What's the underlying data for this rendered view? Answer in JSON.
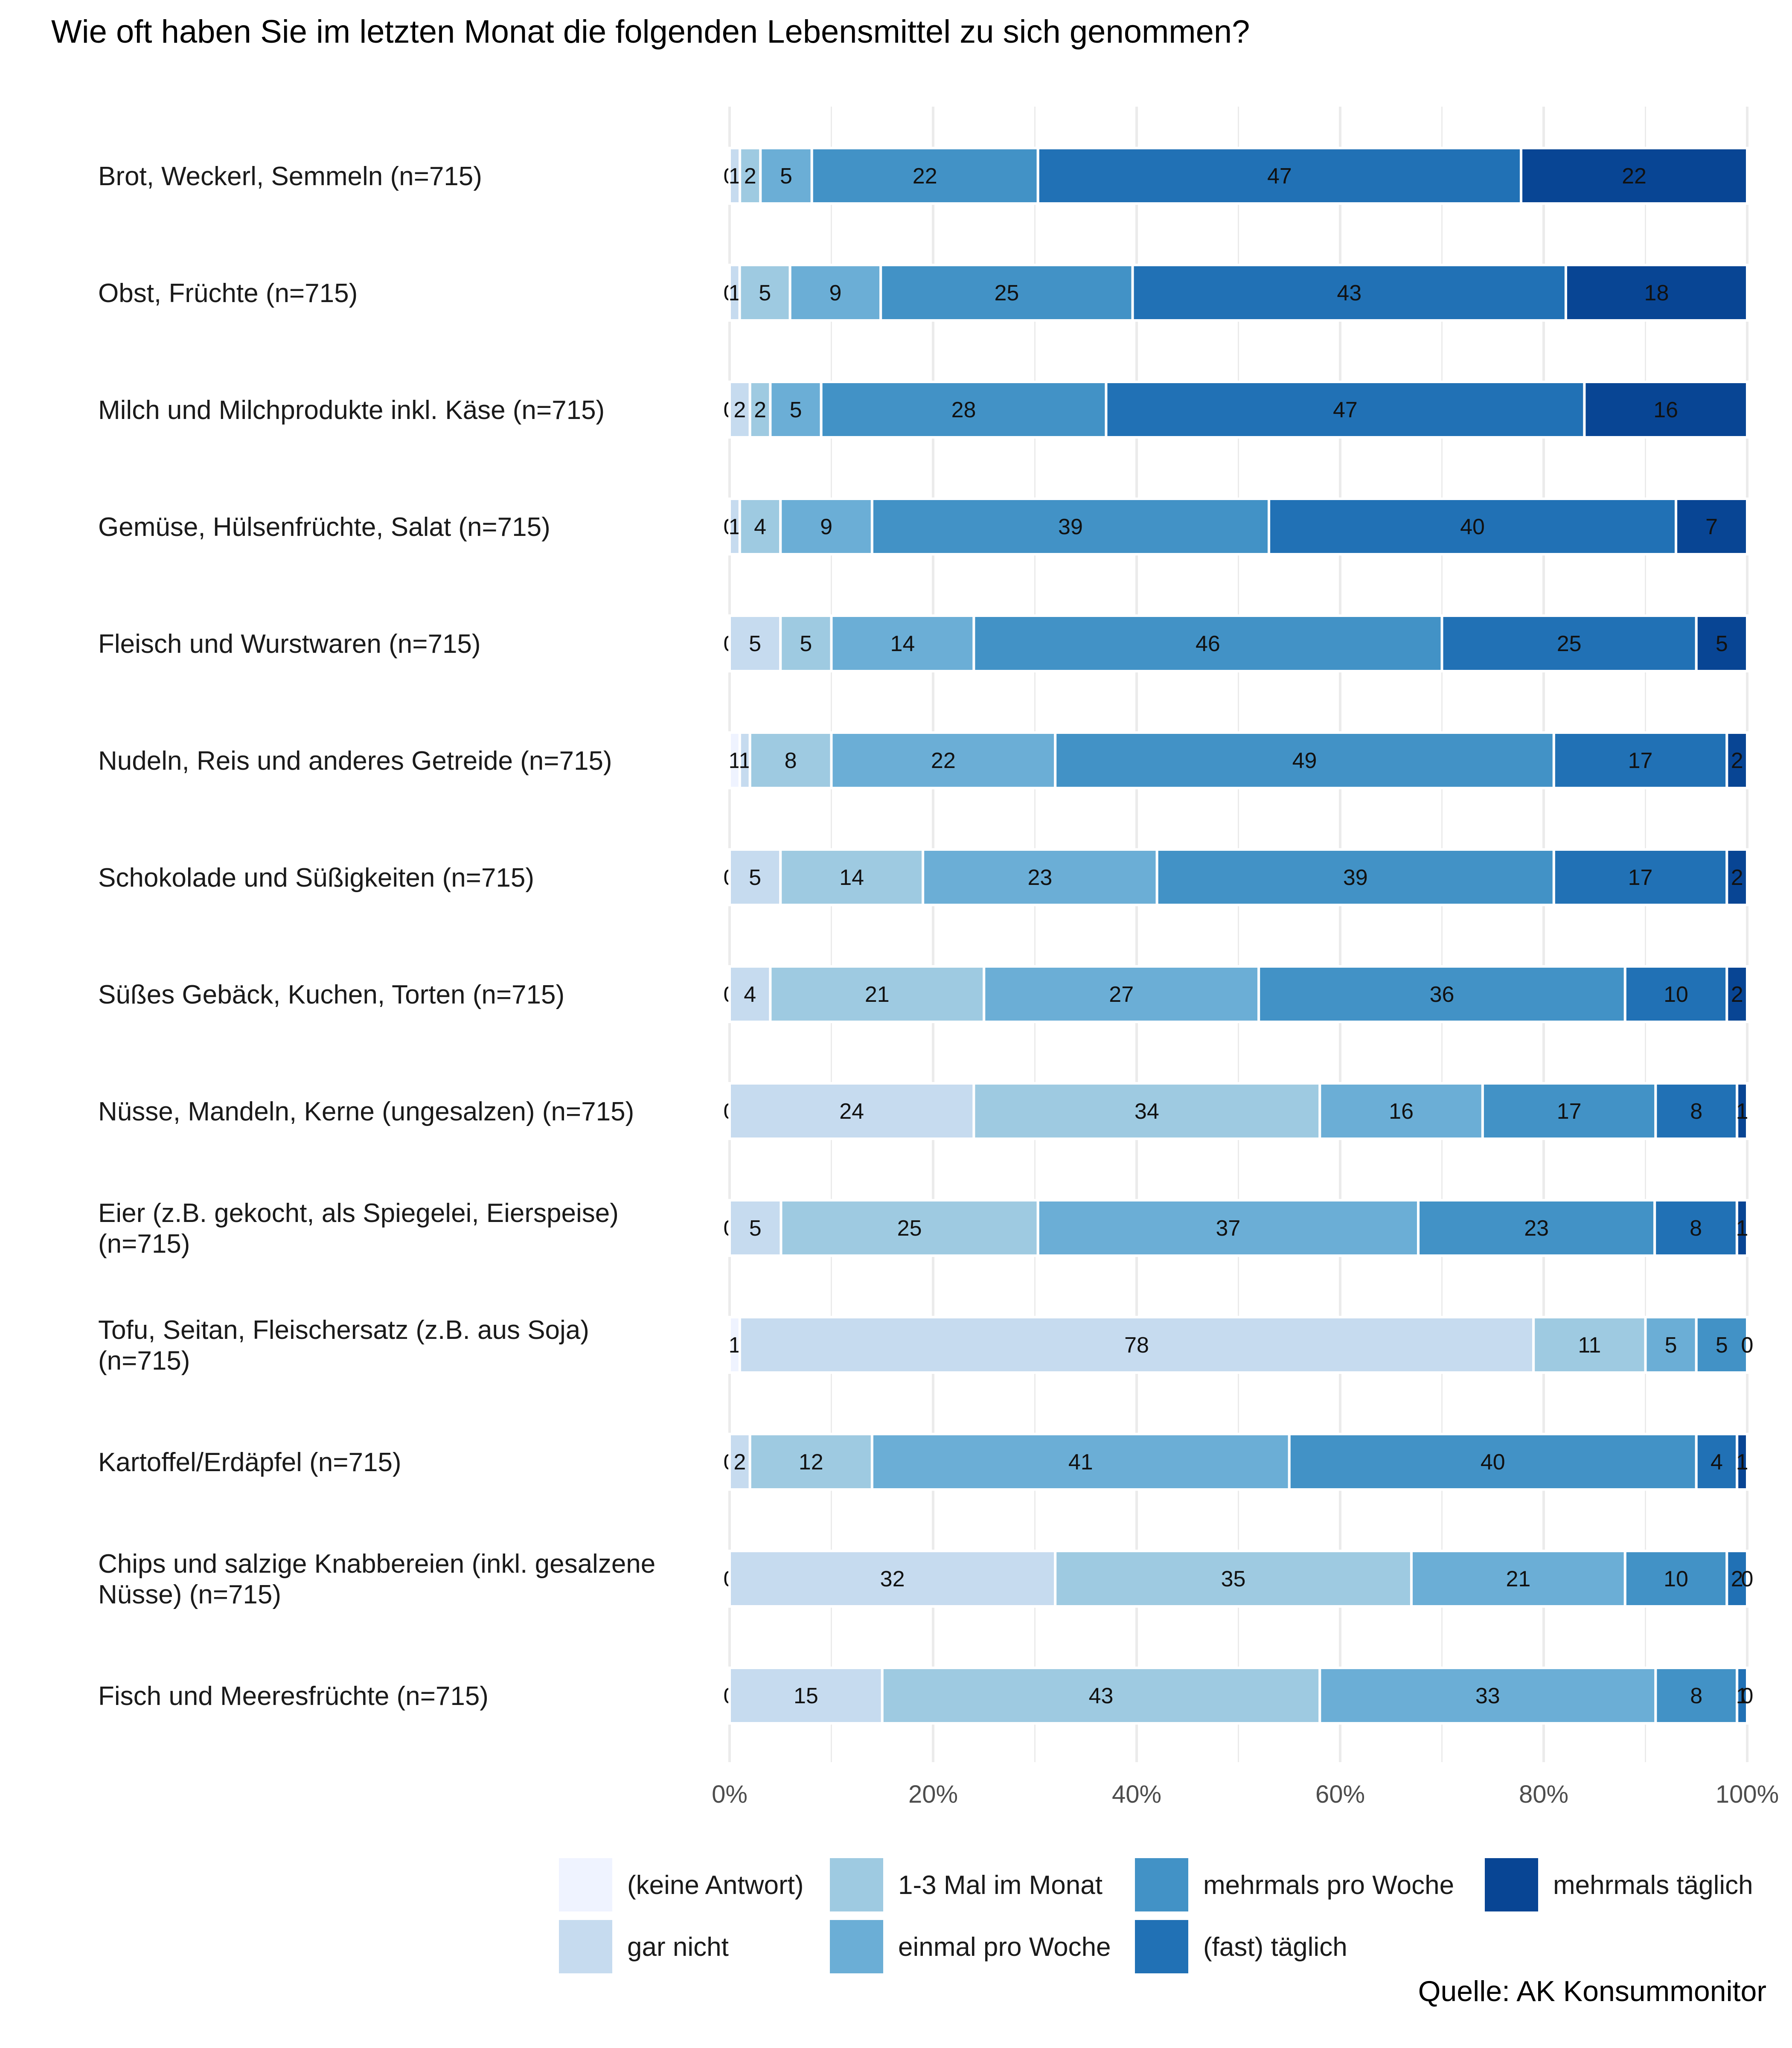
{
  "chart_data": {
    "type": "bar",
    "orientation": "horizontal",
    "stacked": true,
    "title": "Wie oft haben Sie im letzten Monat die folgenden Lebensmittel zu sich genommen?",
    "source": "Quelle: AK Konsummonitor",
    "xlim": [
      0,
      100
    ],
    "x_ticks": [
      "0%",
      "20%",
      "40%",
      "60%",
      "80%",
      "100%"
    ],
    "grid": true,
    "legend_position": "bottom",
    "series": [
      {
        "name": "(keine Antwort)",
        "color": "#eff3ff"
      },
      {
        "name": "gar nicht",
        "color": "#c6dbef"
      },
      {
        "name": "1-3 Mal im Monat",
        "color": "#9ecae1"
      },
      {
        "name": "einmal pro Woche",
        "color": "#6baed6"
      },
      {
        "name": "mehrmals pro Woche",
        "color": "#4292c6"
      },
      {
        "name": "(fast) täglich",
        "color": "#2171b5"
      },
      {
        "name": "mehrmals täglich",
        "color": "#084594"
      }
    ],
    "categories": [
      {
        "label": "Brot, Weckerl, Semmeln (n=715)",
        "values": [
          0,
          1,
          2,
          5,
          22,
          47,
          22
        ],
        "series_offset": 0
      },
      {
        "label": "Obst, Früchte (n=715)",
        "values": [
          0,
          1,
          5,
          9,
          25,
          43,
          18
        ],
        "series_offset": 0
      },
      {
        "label": "Milch und Milchprodukte inkl. Käse (n=715)",
        "values": [
          0,
          2,
          2,
          5,
          28,
          47,
          16
        ],
        "series_offset": 0
      },
      {
        "label": "Gemüse, Hülsenfrüchte, Salat (n=715)",
        "values": [
          0,
          1,
          4,
          9,
          39,
          40,
          7
        ],
        "series_offset": 0
      },
      {
        "label": "Fleisch und Wurstwaren (n=715)",
        "values": [
          0,
          5,
          5,
          14,
          46,
          25,
          5
        ],
        "series_offset": 0
      },
      {
        "label": "Nudeln, Reis und anderes Getreide (n=715)",
        "values": [
          1,
          1,
          8,
          22,
          49,
          17,
          2
        ],
        "series_offset": 0
      },
      {
        "label": "Schokolade und Süßigkeiten (n=715)",
        "values": [
          0,
          5,
          14,
          23,
          39,
          17,
          2
        ],
        "series_offset": 0
      },
      {
        "label": "Süßes Gebäck, Kuchen, Torten (n=715)",
        "values": [
          0,
          4,
          21,
          27,
          36,
          10,
          2
        ],
        "series_offset": 0
      },
      {
        "label": "Nüsse, Mandeln, Kerne (ungesalzen) (n=715)",
        "values": [
          0,
          24,
          34,
          16,
          17,
          8,
          1
        ],
        "series_offset": 0
      },
      {
        "label": "Eier (z.B. gekocht, als Spiegelei, Eierspeise) (n=715)",
        "values": [
          0,
          5,
          25,
          37,
          23,
          8,
          1
        ],
        "series_offset": 0
      },
      {
        "label": "Tofu, Seitan, Fleischersatz (z.B. aus Soja) (n=715)",
        "values": [
          1,
          78,
          11,
          5,
          5,
          0,
          0
        ],
        "series_offset": 0
      },
      {
        "label": "Kartoffel/Erdäpfel (n=715)",
        "values": [
          0,
          2,
          12,
          41,
          40,
          4,
          1
        ],
        "series_offset": 0
      },
      {
        "label": "Chips und salzige Knabbereien (inkl. gesalzene Nüsse) (n=715)",
        "values": [
          0,
          32,
          35,
          21,
          10,
          2,
          0
        ],
        "series_offset": 0
      },
      {
        "label": "Fisch und Meeresfrüchte (n=715)",
        "values": [
          0,
          15,
          43,
          33,
          8,
          1,
          0
        ],
        "series_offset": 0
      }
    ]
  }
}
